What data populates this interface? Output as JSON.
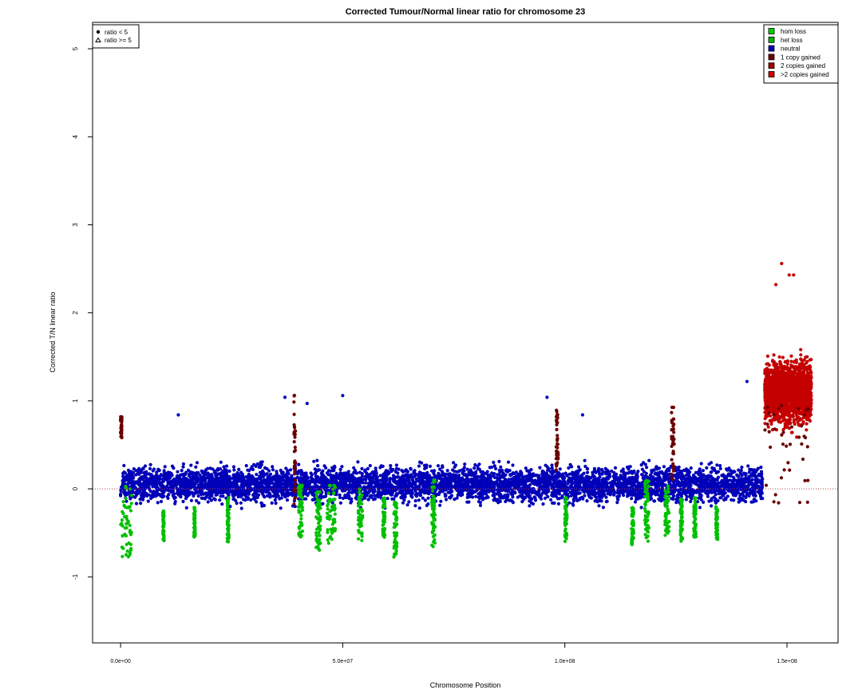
{
  "chart_data": {
    "type": "scatter",
    "title": "Corrected Tumour/Normal linear ratio for chromosome  23",
    "xlabel": "Chromosome Position",
    "ylabel": "Corrected T/N linear ratio",
    "xlim": [
      -6300000,
      161500000
    ],
    "ylim": [
      -1.75,
      5.3
    ],
    "x_ticks": [
      {
        "value": 0,
        "label": "0.0e+00"
      },
      {
        "value": 50000000,
        "label": "5.0e+07"
      },
      {
        "value": 100000000,
        "label": "1.0e+08"
      },
      {
        "value": 150000000,
        "label": "1.5e+08"
      }
    ],
    "y_ticks": [
      {
        "value": -1,
        "label": "-1"
      },
      {
        "value": 0,
        "label": "0"
      },
      {
        "value": 1,
        "label": "1"
      },
      {
        "value": 2,
        "label": "2"
      },
      {
        "value": 3,
        "label": "3"
      },
      {
        "value": 4,
        "label": "4"
      },
      {
        "value": 5,
        "label": "5"
      }
    ],
    "reference_line": {
      "y": 0,
      "style": "dotted",
      "color": "#b04040"
    },
    "shape_legend": {
      "position": "top-left",
      "items": [
        {
          "symbol": "dot",
          "label": "ratio < 5"
        },
        {
          "symbol": "triangle",
          "label": "ratio >= 5"
        }
      ]
    },
    "state_legend": {
      "position": "top-right",
      "items": [
        {
          "label": "hom loss",
          "color": "#00d000"
        },
        {
          "label": "het loss",
          "color": "#00b000"
        },
        {
          "label": "neutral",
          "color": "#0000b8"
        },
        {
          "label": "1 copy gained",
          "color": "#6a0000"
        },
        {
          "label": "2 copies gained",
          "color": "#a00000"
        },
        {
          "label": ">2 copies gained",
          "color": "#d00000"
        }
      ]
    },
    "series": [
      {
        "name": "neutral",
        "color": "#0000b8",
        "x_range": [
          0,
          144500000
        ],
        "y_center": 0.05,
        "y_band": [
          -0.55,
          0.75
        ],
        "outliers": [
          [
            13000000,
            0.84
          ],
          [
            37000000,
            1.04
          ],
          [
            42000000,
            0.97
          ],
          [
            50000000,
            1.06
          ],
          [
            96000000,
            1.04
          ],
          [
            104000000,
            0.84
          ],
          [
            141000000,
            1.22
          ]
        ]
      },
      {
        "name": "het loss",
        "color": "#00c000",
        "segments": [
          [
            0,
            2500000,
            -0.78,
            0.05
          ],
          [
            9500000,
            9800000,
            -0.6,
            -0.25
          ],
          [
            16500000,
            16800000,
            -0.55,
            -0.2
          ],
          [
            24000000,
            24400000,
            -0.62,
            -0.1
          ],
          [
            40000000,
            41000000,
            -0.55,
            0.05
          ],
          [
            44000000,
            45000000,
            -0.7,
            0.0
          ],
          [
            46500000,
            48500000,
            -0.62,
            0.05
          ],
          [
            53500000,
            54500000,
            -0.6,
            0.0
          ],
          [
            59000000,
            59500000,
            -0.55,
            -0.1
          ],
          [
            61500000,
            62200000,
            -0.78,
            -0.15
          ],
          [
            70000000,
            70800000,
            -0.68,
            0.1
          ],
          [
            100000000,
            100500000,
            -0.6,
            -0.1
          ],
          [
            115000000,
            115500000,
            -0.65,
            -0.2
          ],
          [
            118000000,
            119000000,
            -0.6,
            0.1
          ],
          [
            122500000,
            123500000,
            -0.58,
            0.05
          ],
          [
            126000000,
            126500000,
            -0.6,
            -0.1
          ],
          [
            129000000,
            129500000,
            -0.55,
            -0.1
          ],
          [
            134000000,
            134400000,
            -0.58,
            -0.2
          ]
        ]
      },
      {
        "name": "1 copy gained",
        "color": "#6a0000",
        "segments": [
          [
            0,
            300000,
            0.55,
            0.82
          ],
          [
            39000000,
            39400000,
            -0.2,
            1.12
          ],
          [
            98000000,
            98500000,
            0.2,
            0.9
          ],
          [
            124000000,
            124600000,
            0.1,
            0.96
          ],
          [
            145000000,
            155000000,
            -0.2,
            1.0
          ]
        ]
      },
      {
        "name": ">2 copies gained",
        "color": "#c40000",
        "x_range": [
          145000000,
          155500000
        ],
        "y_center": 1.1,
        "y_band": [
          -0.12,
          2.56
        ]
      }
    ]
  }
}
